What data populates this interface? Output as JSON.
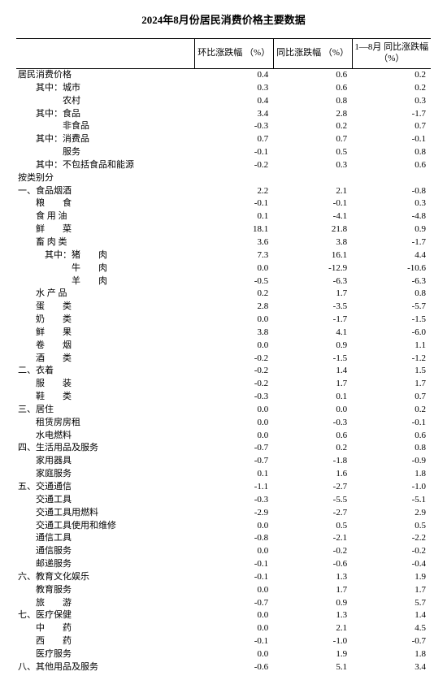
{
  "title": "2024年8月份居民消费价格主要数据",
  "columns": {
    "label": "",
    "mom": "环比涨跌幅\n（%）",
    "yoy": "同比涨跌幅\n（%）",
    "ytd": "1—8月\n同比涨跌幅\n（%）"
  },
  "rows": [
    {
      "indent": 0,
      "label": "居民消费价格",
      "mom": "0.4",
      "yoy": "0.6",
      "ytd": "0.2"
    },
    {
      "indent": 2,
      "label": "其中：城市",
      "mom": "0.3",
      "yoy": "0.6",
      "ytd": "0.2"
    },
    {
      "indent": 5,
      "label": "农村",
      "mom": "0.4",
      "yoy": "0.8",
      "ytd": "0.3"
    },
    {
      "indent": 2,
      "label": "其中：食品",
      "mom": "3.4",
      "yoy": "2.8",
      "ytd": "-1.7"
    },
    {
      "indent": 5,
      "label": "非食品",
      "mom": "-0.3",
      "yoy": "0.2",
      "ytd": "0.7"
    },
    {
      "indent": 2,
      "label": "其中：消费品",
      "mom": "0.7",
      "yoy": "0.7",
      "ytd": "-0.1"
    },
    {
      "indent": 5,
      "label": "服务",
      "mom": "-0.1",
      "yoy": "0.5",
      "ytd": "0.8"
    },
    {
      "indent": 2,
      "label": "其中：不包括食品和能源",
      "mom": "-0.2",
      "yoy": "0.3",
      "ytd": "0.6"
    },
    {
      "indent": 0,
      "label": "按类别分",
      "mom": "",
      "yoy": "",
      "ytd": ""
    },
    {
      "indent": 0,
      "label": "一、食品烟酒",
      "mom": "2.2",
      "yoy": "2.1",
      "ytd": "-0.8"
    },
    {
      "indent": 2,
      "label": "粮　　食",
      "mom": "-0.1",
      "yoy": "-0.1",
      "ytd": "0.3"
    },
    {
      "indent": 2,
      "label": "食 用 油",
      "mom": "0.1",
      "yoy": "-4.1",
      "ytd": "-4.8"
    },
    {
      "indent": 2,
      "label": "鲜　　菜",
      "mom": "18.1",
      "yoy": "21.8",
      "ytd": "0.9"
    },
    {
      "indent": 2,
      "label": "畜 肉 类",
      "mom": "3.6",
      "yoy": "3.8",
      "ytd": "-1.7"
    },
    {
      "indent": 3,
      "label": "其中：猪　　肉",
      "mom": "7.3",
      "yoy": "16.1",
      "ytd": "4.4"
    },
    {
      "indent": 6,
      "label": "牛　　肉",
      "mom": "0.0",
      "yoy": "-12.9",
      "ytd": "-10.6"
    },
    {
      "indent": 6,
      "label": "羊　　肉",
      "mom": "-0.5",
      "yoy": "-6.3",
      "ytd": "-6.3"
    },
    {
      "indent": 2,
      "label": "水 产 品",
      "mom": "0.2",
      "yoy": "1.7",
      "ytd": "0.8"
    },
    {
      "indent": 2,
      "label": "蛋　　类",
      "mom": "2.8",
      "yoy": "-3.5",
      "ytd": "-5.7"
    },
    {
      "indent": 2,
      "label": "奶　　类",
      "mom": "0.0",
      "yoy": "-1.7",
      "ytd": "-1.5"
    },
    {
      "indent": 2,
      "label": "鲜　　果",
      "mom": "3.8",
      "yoy": "4.1",
      "ytd": "-6.0"
    },
    {
      "indent": 2,
      "label": "卷　　烟",
      "mom": "0.0",
      "yoy": "0.9",
      "ytd": "1.1"
    },
    {
      "indent": 2,
      "label": "酒　　类",
      "mom": "-0.2",
      "yoy": "-1.5",
      "ytd": "-1.2"
    },
    {
      "indent": 0,
      "label": "二、衣着",
      "mom": "-0.2",
      "yoy": "1.4",
      "ytd": "1.5"
    },
    {
      "indent": 2,
      "label": "服　　装",
      "mom": "-0.2",
      "yoy": "1.7",
      "ytd": "1.7"
    },
    {
      "indent": 2,
      "label": "鞋　　类",
      "mom": "-0.3",
      "yoy": "0.1",
      "ytd": "0.7"
    },
    {
      "indent": 0,
      "label": "三、居住",
      "mom": "0.0",
      "yoy": "0.0",
      "ytd": "0.2"
    },
    {
      "indent": 2,
      "label": "租赁房房租",
      "mom": "0.0",
      "yoy": "-0.3",
      "ytd": "-0.1"
    },
    {
      "indent": 2,
      "label": "水电燃料",
      "mom": "0.0",
      "yoy": "0.6",
      "ytd": "0.6"
    },
    {
      "indent": 0,
      "label": "四、生活用品及服务",
      "mom": "-0.7",
      "yoy": "0.2",
      "ytd": "0.8"
    },
    {
      "indent": 2,
      "label": "家用器具",
      "mom": "-0.7",
      "yoy": "-1.8",
      "ytd": "-0.9"
    },
    {
      "indent": 2,
      "label": "家庭服务",
      "mom": "0.1",
      "yoy": "1.6",
      "ytd": "1.8"
    },
    {
      "indent": 0,
      "label": "五、交通通信",
      "mom": "-1.1",
      "yoy": "-2.7",
      "ytd": "-1.0"
    },
    {
      "indent": 2,
      "label": "交通工具",
      "mom": "-0.3",
      "yoy": "-5.5",
      "ytd": "-5.1"
    },
    {
      "indent": 2,
      "label": "交通工具用燃料",
      "mom": "-2.9",
      "yoy": "-2.7",
      "ytd": "2.9"
    },
    {
      "indent": 2,
      "label": "交通工具使用和维修",
      "mom": "0.0",
      "yoy": "0.5",
      "ytd": "0.5"
    },
    {
      "indent": 2,
      "label": "通信工具",
      "mom": "-0.8",
      "yoy": "-2.1",
      "ytd": "-2.2"
    },
    {
      "indent": 2,
      "label": "通信服务",
      "mom": "0.0",
      "yoy": "-0.2",
      "ytd": "-0.2"
    },
    {
      "indent": 2,
      "label": "邮递服务",
      "mom": "-0.1",
      "yoy": "-0.6",
      "ytd": "-0.4"
    },
    {
      "indent": 0,
      "label": "六、教育文化娱乐",
      "mom": "-0.1",
      "yoy": "1.3",
      "ytd": "1.9"
    },
    {
      "indent": 2,
      "label": "教育服务",
      "mom": "0.0",
      "yoy": "1.7",
      "ytd": "1.7"
    },
    {
      "indent": 2,
      "label": "旅　　游",
      "mom": "-0.7",
      "yoy": "0.9",
      "ytd": "5.7"
    },
    {
      "indent": 0,
      "label": "七、医疗保健",
      "mom": "0.0",
      "yoy": "1.3",
      "ytd": "1.4"
    },
    {
      "indent": 2,
      "label": "中　　药",
      "mom": "0.0",
      "yoy": "2.1",
      "ytd": "4.5"
    },
    {
      "indent": 2,
      "label": "西　　药",
      "mom": "-0.1",
      "yoy": "-1.0",
      "ytd": "-0.7"
    },
    {
      "indent": 2,
      "label": "医疗服务",
      "mom": "0.0",
      "yoy": "1.9",
      "ytd": "1.8"
    },
    {
      "indent": 0,
      "label": "八、其他用品及服务",
      "mom": "-0.6",
      "yoy": "5.1",
      "ytd": "3.4"
    }
  ]
}
